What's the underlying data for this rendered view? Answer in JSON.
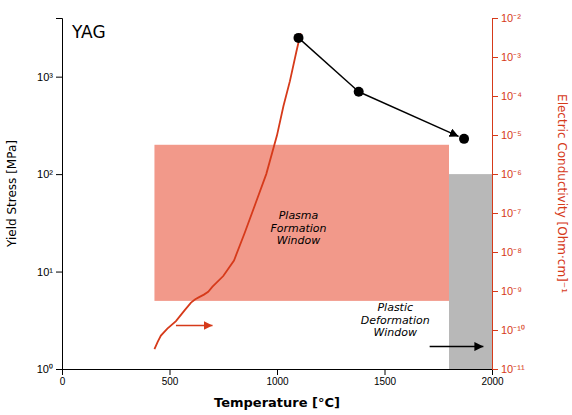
{
  "chart_data": {
    "type": "line",
    "title": "YAG",
    "xlabel": "Temperature [°C]",
    "ylabel": "Yield Stress [MPa]",
    "y2label": "Electric Conductivity [Ohm·cm]⁻¹",
    "log": "y",
    "grid": false,
    "xlim": [
      0,
      2000
    ],
    "xticks": [
      0,
      500,
      1000,
      1500,
      2000
    ],
    "ylim": [
      1.0,
      4000
    ],
    "yticks": [
      {
        "value": 1,
        "label": "10⁰"
      },
      {
        "value": 10,
        "label": "10¹"
      },
      {
        "value": 100,
        "label": "10²"
      },
      {
        "value": 1000,
        "label": "10³"
      }
    ],
    "y2lim": [
      1e-11,
      0.01
    ],
    "y2ticks": [
      {
        "value": 1e-11,
        "label": "10⁻¹¹"
      },
      {
        "value": 1e-10,
        "label": "10⁻¹⁰"
      },
      {
        "value": 1e-09,
        "label": "10⁻⁹"
      },
      {
        "value": 1e-08,
        "label": "10⁻⁸"
      },
      {
        "value": 1e-07,
        "label": "10⁻⁷"
      },
      {
        "value": 1e-06,
        "label": "10⁻⁶"
      },
      {
        "value": 1e-05,
        "label": "10⁻⁵"
      },
      {
        "value": 0.0001,
        "label": "10⁻⁴"
      },
      {
        "value": 0.001,
        "label": "10⁻³"
      },
      {
        "value": 0.01,
        "label": "10⁻²"
      }
    ],
    "series": [
      {
        "type": "line",
        "color": "#d63a1a",
        "x": [
          430,
          445,
          460,
          490,
          530,
          570,
          600,
          620,
          640,
          660,
          680,
          700,
          750,
          800,
          850,
          900,
          950,
          1000,
          1030,
          1060,
          1090,
          1110
        ],
        "values": [
          1.6,
          1.9,
          2.2,
          2.6,
          3.1,
          4.0,
          4.8,
          5.2,
          5.5,
          5.8,
          6.2,
          7.0,
          9.0,
          13,
          25,
          50,
          100,
          250,
          500,
          900,
          1800,
          2800
        ]
      },
      {
        "type": "scatter",
        "marker": "circle",
        "line_style": "solid",
        "color": "black",
        "x": [
          1100,
          1380,
          1870
        ],
        "values": [
          2500,
          700,
          230
        ]
      }
    ],
    "regions": [
      {
        "x": [
          430,
          1800
        ],
        "y": [
          5.0,
          200
        ],
        "color": "#f2998a"
      },
      {
        "x": [
          1800,
          2000
        ],
        "y": [
          1.0,
          100
        ],
        "color": "#b8b8b8"
      }
    ],
    "arrows": [
      {
        "x": [
          530,
          700
        ],
        "y": 2.8,
        "color": "#d63a1a"
      },
      {
        "x": [
          1710,
          1960
        ],
        "y": 1.7,
        "color": "black"
      }
    ],
    "annotations": [
      {
        "text": [
          "Plasma",
          "Formation",
          "Window"
        ],
        "x": 1100,
        "y": 28
      },
      {
        "text": [
          "Plastic",
          "Deformation",
          "Window"
        ],
        "x": 1550,
        "y": 3.2
      }
    ]
  }
}
